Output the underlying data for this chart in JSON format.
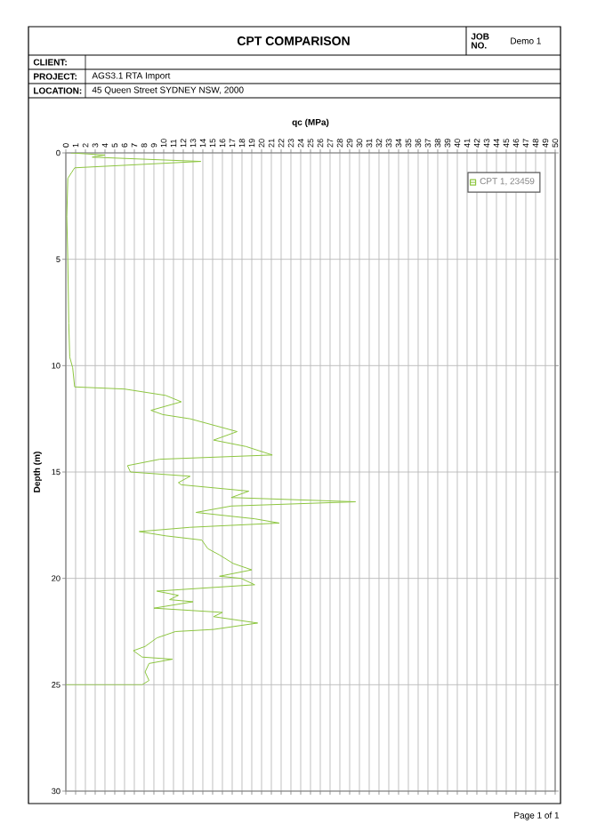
{
  "chart_data": {
    "type": "line",
    "title": "CPT COMPARISON",
    "xlabel": "qc (MPa)",
    "ylabel": "Depth (m)",
    "annotations": [
      "JOB NO.",
      "Demo 1",
      "CLIENT:",
      "PROJECT:",
      "AGS3.1 RTA Import",
      "LOCATION:",
      "45 Queen Street SYDNEY NSW, 2000",
      "Page 1 of 1"
    ],
    "series": [
      {
        "name": "CPT 1, 23459",
        "color": "#8dc63f",
        "x": [
          0.5,
          4.0,
          2.7,
          13.8,
          0.9,
          0.2,
          0.1,
          0.2,
          0.3,
          0.4,
          0.7,
          0.9,
          6.0,
          10.2,
          11.8,
          8.7,
          9.9,
          12.7,
          17.5,
          15.1,
          18.4,
          21.1,
          9.6,
          6.3,
          6.6,
          12.7,
          11.5,
          11.8,
          18.7,
          16.9,
          29.6,
          16.9,
          13.3,
          19.3,
          21.8,
          12.7,
          7.5,
          10.2,
          13.9,
          14.5,
          15.7,
          17.1,
          19.0,
          15.7,
          17.9,
          19.3,
          9.3,
          11.5,
          10.6,
          13.0,
          9.0,
          16.0,
          15.1,
          19.6,
          15.1,
          11.2,
          9.3,
          8.1,
          6.9,
          7.8,
          10.9,
          8.5,
          8.1,
          8.5,
          7.8,
          0
        ],
        "values": [
          0,
          0.1,
          0.2,
          0.4,
          0.7,
          1.2,
          3,
          5,
          8,
          9.6,
          10.1,
          11.0,
          11.1,
          11.4,
          11.7,
          12.1,
          12.3,
          12.5,
          13.1,
          13.5,
          13.8,
          14.2,
          14.4,
          14.7,
          15.0,
          15.2,
          15.5,
          15.6,
          15.9,
          16.2,
          16.4,
          16.6,
          16.9,
          17.2,
          17.4,
          17.6,
          17.8,
          18.0,
          18.2,
          18.6,
          18.9,
          19.3,
          19.6,
          19.9,
          20.0,
          20.3,
          20.6,
          20.8,
          21.0,
          21.1,
          21.4,
          21.6,
          21.8,
          22.1,
          22.4,
          22.5,
          22.8,
          23.2,
          23.4,
          23.7,
          23.8,
          24.0,
          24.4,
          24.8,
          25.0,
          25.0
        ]
      }
    ],
    "xlim": [
      0,
      50
    ],
    "ylim": [
      30,
      0
    ],
    "xticks": [
      0,
      1,
      2,
      3,
      4,
      5,
      6,
      7,
      8,
      9,
      10,
      11,
      12,
      13,
      14,
      15,
      16,
      17,
      18,
      19,
      20,
      21,
      22,
      23,
      24,
      25,
      26,
      27,
      28,
      29,
      30,
      31,
      32,
      33,
      34,
      35,
      36,
      37,
      38,
      39,
      40,
      41,
      42,
      43,
      44,
      45,
      46,
      47,
      48,
      49,
      50
    ],
    "yticks": [
      0,
      5,
      10,
      15,
      20,
      25,
      30
    ],
    "grid": true,
    "legend": "top right"
  }
}
